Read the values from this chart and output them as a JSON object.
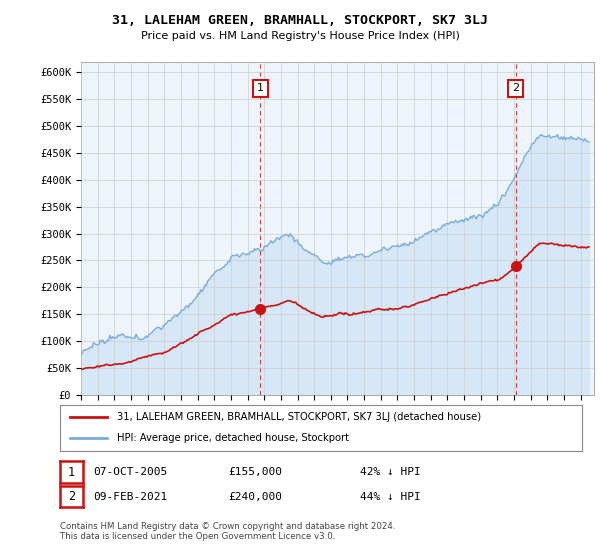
{
  "title": "31, LALEHAM GREEN, BRAMHALL, STOCKPORT, SK7 3LJ",
  "subtitle": "Price paid vs. HM Land Registry's House Price Index (HPI)",
  "ylabel_ticks": [
    "£0",
    "£50K",
    "£100K",
    "£150K",
    "£200K",
    "£250K",
    "£300K",
    "£350K",
    "£400K",
    "£450K",
    "£500K",
    "£550K",
    "£600K"
  ],
  "ytick_values": [
    0,
    50000,
    100000,
    150000,
    200000,
    250000,
    300000,
    350000,
    400000,
    450000,
    500000,
    550000,
    600000
  ],
  "ylim": [
    0,
    620000
  ],
  "xlim_start": 1995.0,
  "xlim_end": 2025.8,
  "hpi_color": "#7aaddc",
  "hpi_fill_color": "#d6e8f7",
  "price_color": "#cc1111",
  "marker1_x": 2005.77,
  "marker1_y": 155000,
  "marker2_x": 2021.1,
  "marker2_y": 240000,
  "marker1_label": "1",
  "marker2_label": "2",
  "legend_line1": "31, LALEHAM GREEN, BRAMHALL, STOCKPORT, SK7 3LJ (detached house)",
  "legend_line2": "HPI: Average price, detached house, Stockport",
  "footnote": "Contains HM Land Registry data © Crown copyright and database right 2024.\nThis data is licensed under the Open Government Licence v3.0.",
  "background_color": "#ffffff",
  "grid_color": "#cccccc",
  "plot_bg_color": "#eef4fb"
}
